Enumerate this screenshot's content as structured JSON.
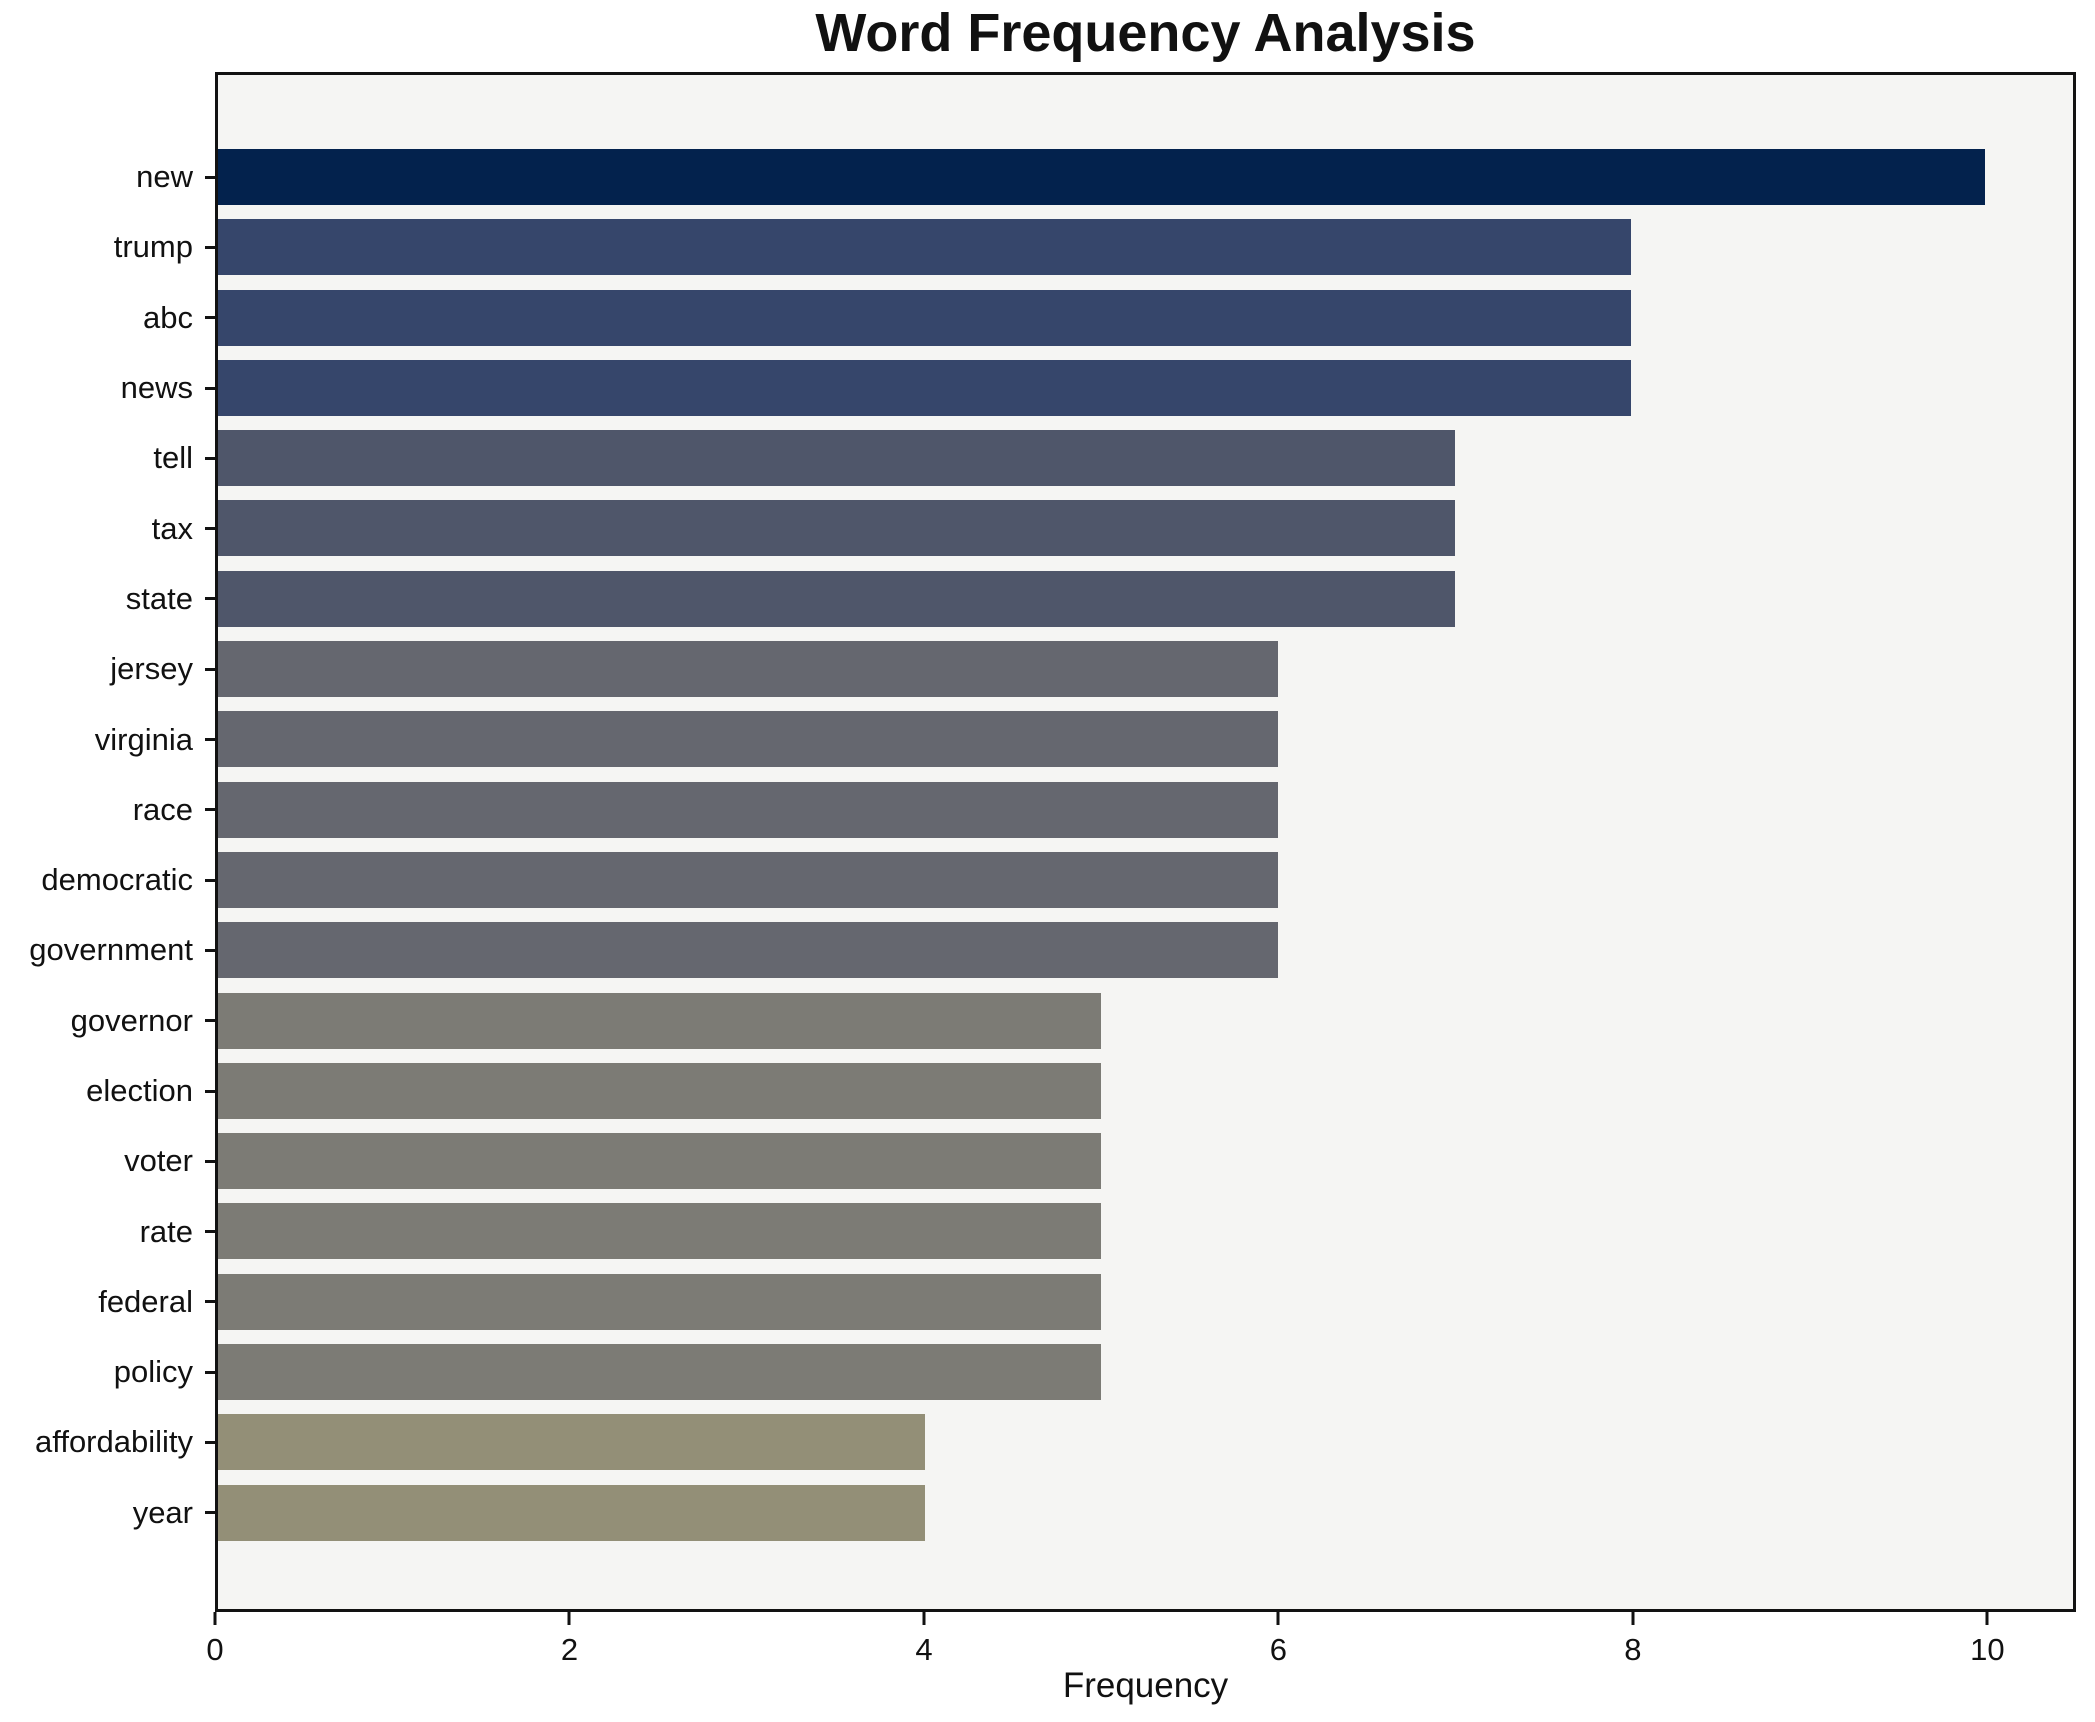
{
  "title": "Word Frequency Analysis",
  "chart_data": {
    "type": "bar",
    "orientation": "horizontal",
    "title": "Word Frequency Analysis",
    "xlabel": "Frequency",
    "ylabel": "",
    "categories": [
      "new",
      "trump",
      "abc",
      "news",
      "tell",
      "tax",
      "state",
      "jersey",
      "virginia",
      "race",
      "democratic",
      "government",
      "governor",
      "election",
      "voter",
      "rate",
      "federal",
      "policy",
      "affordability",
      "year"
    ],
    "values": [
      10,
      8,
      8,
      8,
      7,
      7,
      7,
      6,
      6,
      6,
      6,
      6,
      5,
      5,
      5,
      5,
      5,
      5,
      4,
      4
    ],
    "bar_colors": [
      "#03224d",
      "#36466b",
      "#36466b",
      "#36466b",
      "#4f566a",
      "#4f566a",
      "#4f566a",
      "#65676f",
      "#65676f",
      "#65676f",
      "#65676f",
      "#65676f",
      "#7c7b75",
      "#7c7b75",
      "#7c7b75",
      "#7c7b75",
      "#7c7b75",
      "#7c7b75",
      "#938f77",
      "#938f77"
    ],
    "xlim": [
      0,
      10.5
    ],
    "xticks": [
      0,
      2,
      4,
      6,
      8,
      10
    ],
    "grid": false,
    "legend": null,
    "plot_background": "#f5f5f3",
    "figure_background": "#ffffff",
    "spine_color": "#121212"
  }
}
